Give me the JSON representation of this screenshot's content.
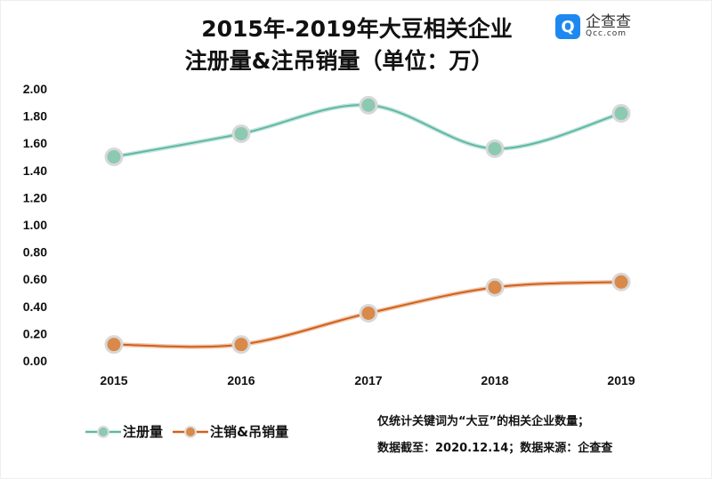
{
  "chart_data": {
    "type": "line",
    "title_line1": "2015年-2019年大豆相关企业",
    "title_line2": "注册量&注吊销量（单位：万）",
    "categories": [
      "2015",
      "2016",
      "2017",
      "2018",
      "2019"
    ],
    "ylim": [
      0,
      2
    ],
    "yticks": [
      "0.00",
      "0.20",
      "0.40",
      "0.60",
      "0.80",
      "1.00",
      "1.20",
      "1.40",
      "1.60",
      "1.80",
      "2.00"
    ],
    "grid": false,
    "legend_position": "bottom-left",
    "series": [
      {
        "name": "注册量",
        "values": [
          1.5,
          1.67,
          1.88,
          1.56,
          1.82
        ],
        "color": "#5fb8a4",
        "marker": "#8cc9b1"
      },
      {
        "name": "注销&吊销量",
        "values": [
          0.12,
          0.12,
          0.35,
          0.54,
          0.58
        ],
        "color": "#d2601a",
        "marker": "#d9894a"
      }
    ]
  },
  "logo": {
    "name": "企查查",
    "domain": "Qcc.com"
  },
  "notes": [
    "仅统计关键词为“大豆”的相关企业数量；",
    "数据截至：2020.12.14；数据来源：企查查"
  ]
}
